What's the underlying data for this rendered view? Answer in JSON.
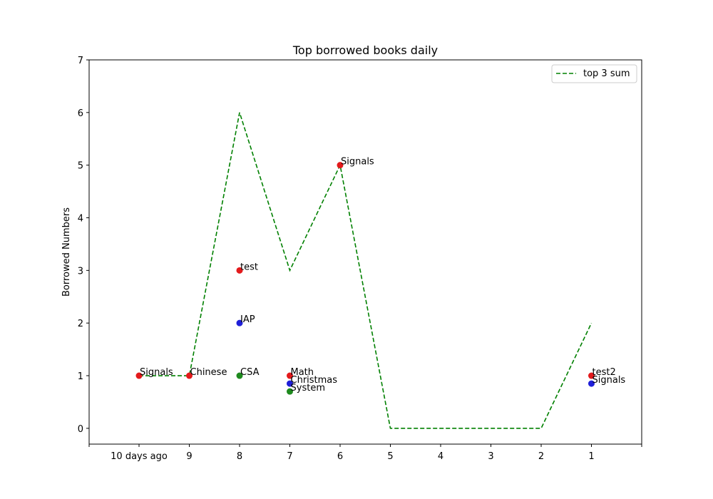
{
  "chart_data": {
    "type": "scatter",
    "title": "Top borrowed books daily",
    "xlabel": "",
    "ylabel": "Borrowed Numbers",
    "categories": [
      "10 days ago",
      "9",
      "8",
      "7",
      "6",
      "5",
      "4",
      "3",
      "2",
      "1"
    ],
    "ylim": [
      -0.3,
      7
    ],
    "yticks": [
      0,
      1,
      2,
      3,
      4,
      5,
      6,
      7
    ],
    "grid": false,
    "legend": {
      "position": "top-right",
      "entries": [
        {
          "label": "top 3 sum",
          "color": "#008000",
          "style": "dashed"
        }
      ]
    },
    "line": {
      "name": "top 3 sum",
      "color": "#008000",
      "values": [
        1,
        1,
        6,
        3,
        5,
        0,
        0,
        0,
        0,
        2
      ]
    },
    "points": [
      {
        "x": "10 days ago",
        "y": 1,
        "label": "Signals",
        "color": "#e31a1c"
      },
      {
        "x": "9",
        "y": 1,
        "label": "Chinese",
        "color": "#e31a1c"
      },
      {
        "x": "8",
        "y": 3,
        "label": "test",
        "color": "#e31a1c"
      },
      {
        "x": "8",
        "y": 2,
        "label": "IAP",
        "color": "#1f1fd8"
      },
      {
        "x": "8",
        "y": 1,
        "label": "CSA",
        "color": "#1e8a1e"
      },
      {
        "x": "7",
        "y": 1,
        "label": "Math",
        "color": "#e31a1c"
      },
      {
        "x": "7",
        "y": 0.85,
        "label": "Christmas",
        "color": "#1f1fd8"
      },
      {
        "x": "7",
        "y": 0.7,
        "label": "System",
        "color": "#1e8a1e"
      },
      {
        "x": "6",
        "y": 5,
        "label": "Signals",
        "color": "#e31a1c"
      },
      {
        "x": "1",
        "y": 1,
        "label": "test2",
        "color": "#e31a1c"
      },
      {
        "x": "1",
        "y": 0.85,
        "label": "Signals",
        "color": "#1f1fd8"
      }
    ]
  }
}
